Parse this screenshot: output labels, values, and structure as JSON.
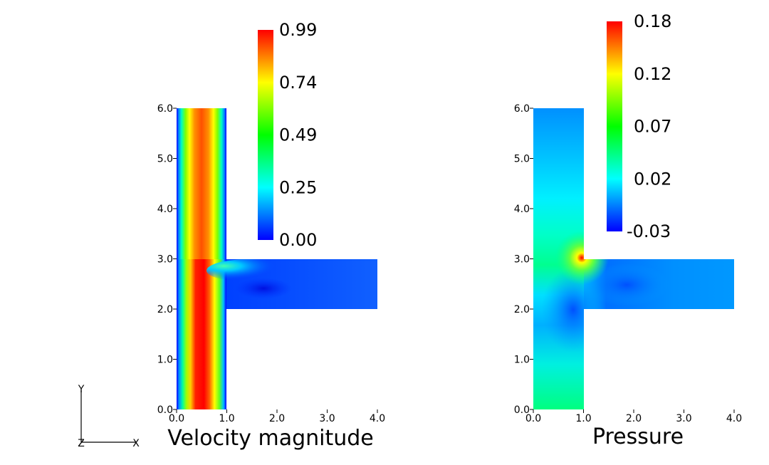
{
  "triad": {
    "y": "Y",
    "z": "Z",
    "x": "X"
  },
  "chart_data": [
    {
      "type": "heatmap",
      "title": "Velocity magnitude",
      "x_ticks": [
        "0.0",
        "1.0",
        "2.0",
        "3.0",
        "4.0"
      ],
      "y_ticks": [
        "0.0",
        "1.0",
        "2.0",
        "3.0",
        "4.0",
        "5.0",
        "6.0"
      ],
      "xlim": [
        0,
        4
      ],
      "ylim": [
        0,
        6
      ],
      "colorbar": {
        "min": 0.0,
        "max": 0.99,
        "labels": [
          "0.99",
          "0.74",
          "0.49",
          "0.25",
          "0.00"
        ],
        "colormap": [
          "#0000ff",
          "#00ffff",
          "#00ff00",
          "#ffff00",
          "#ff0000"
        ]
      }
    },
    {
      "type": "heatmap",
      "title": "Pressure",
      "x_ticks": [
        "0.0",
        "1.0",
        "2.0",
        "3.0",
        "4.0"
      ],
      "y_ticks": [
        "0.0",
        "1.0",
        "2.0",
        "3.0",
        "4.0",
        "5.0",
        "6.0"
      ],
      "xlim": [
        0,
        4
      ],
      "ylim": [
        0,
        6
      ],
      "colorbar": {
        "min": -0.03,
        "max": 0.18,
        "labels": [
          "0.18",
          "0.12",
          "0.07",
          "0.02",
          "-0.03"
        ],
        "colormap": [
          "#0000ff",
          "#00ffff",
          "#00ff00",
          "#ffff00",
          "#ff0000"
        ]
      }
    }
  ]
}
